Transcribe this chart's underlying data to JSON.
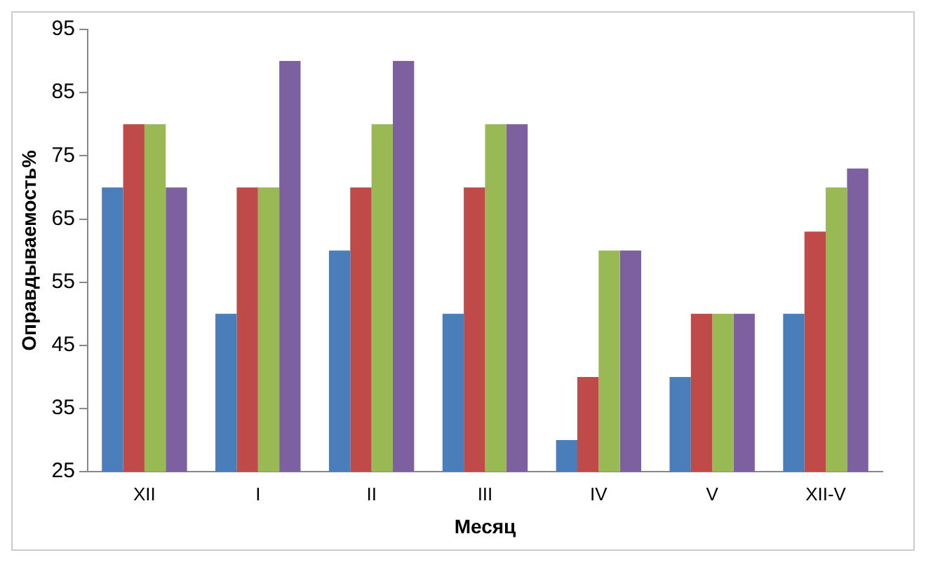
{
  "chart_data": {
    "type": "bar",
    "xlabel": "Месяц",
    "ylabel": "Оправдываемость%",
    "categories": [
      "XII",
      "I",
      "II",
      "III",
      "IV",
      "V",
      "XII-V"
    ],
    "series": [
      {
        "color": "#4a7ebb",
        "values": [
          70,
          50,
          60,
          50,
          30,
          40,
          50
        ]
      },
      {
        "color": "#be4b48",
        "values": [
          80,
          70,
          70,
          70,
          40,
          50,
          63
        ]
      },
      {
        "color": "#98b954",
        "values": [
          80,
          70,
          80,
          80,
          60,
          50,
          70
        ]
      },
      {
        "color": "#7d60a0",
        "values": [
          70,
          90,
          90,
          80,
          60,
          50,
          73
        ]
      }
    ],
    "ylim": [
      25,
      95
    ],
    "yticks": [
      25,
      35,
      45,
      55,
      65,
      75,
      85,
      95
    ],
    "grid": false,
    "legend": false
  }
}
